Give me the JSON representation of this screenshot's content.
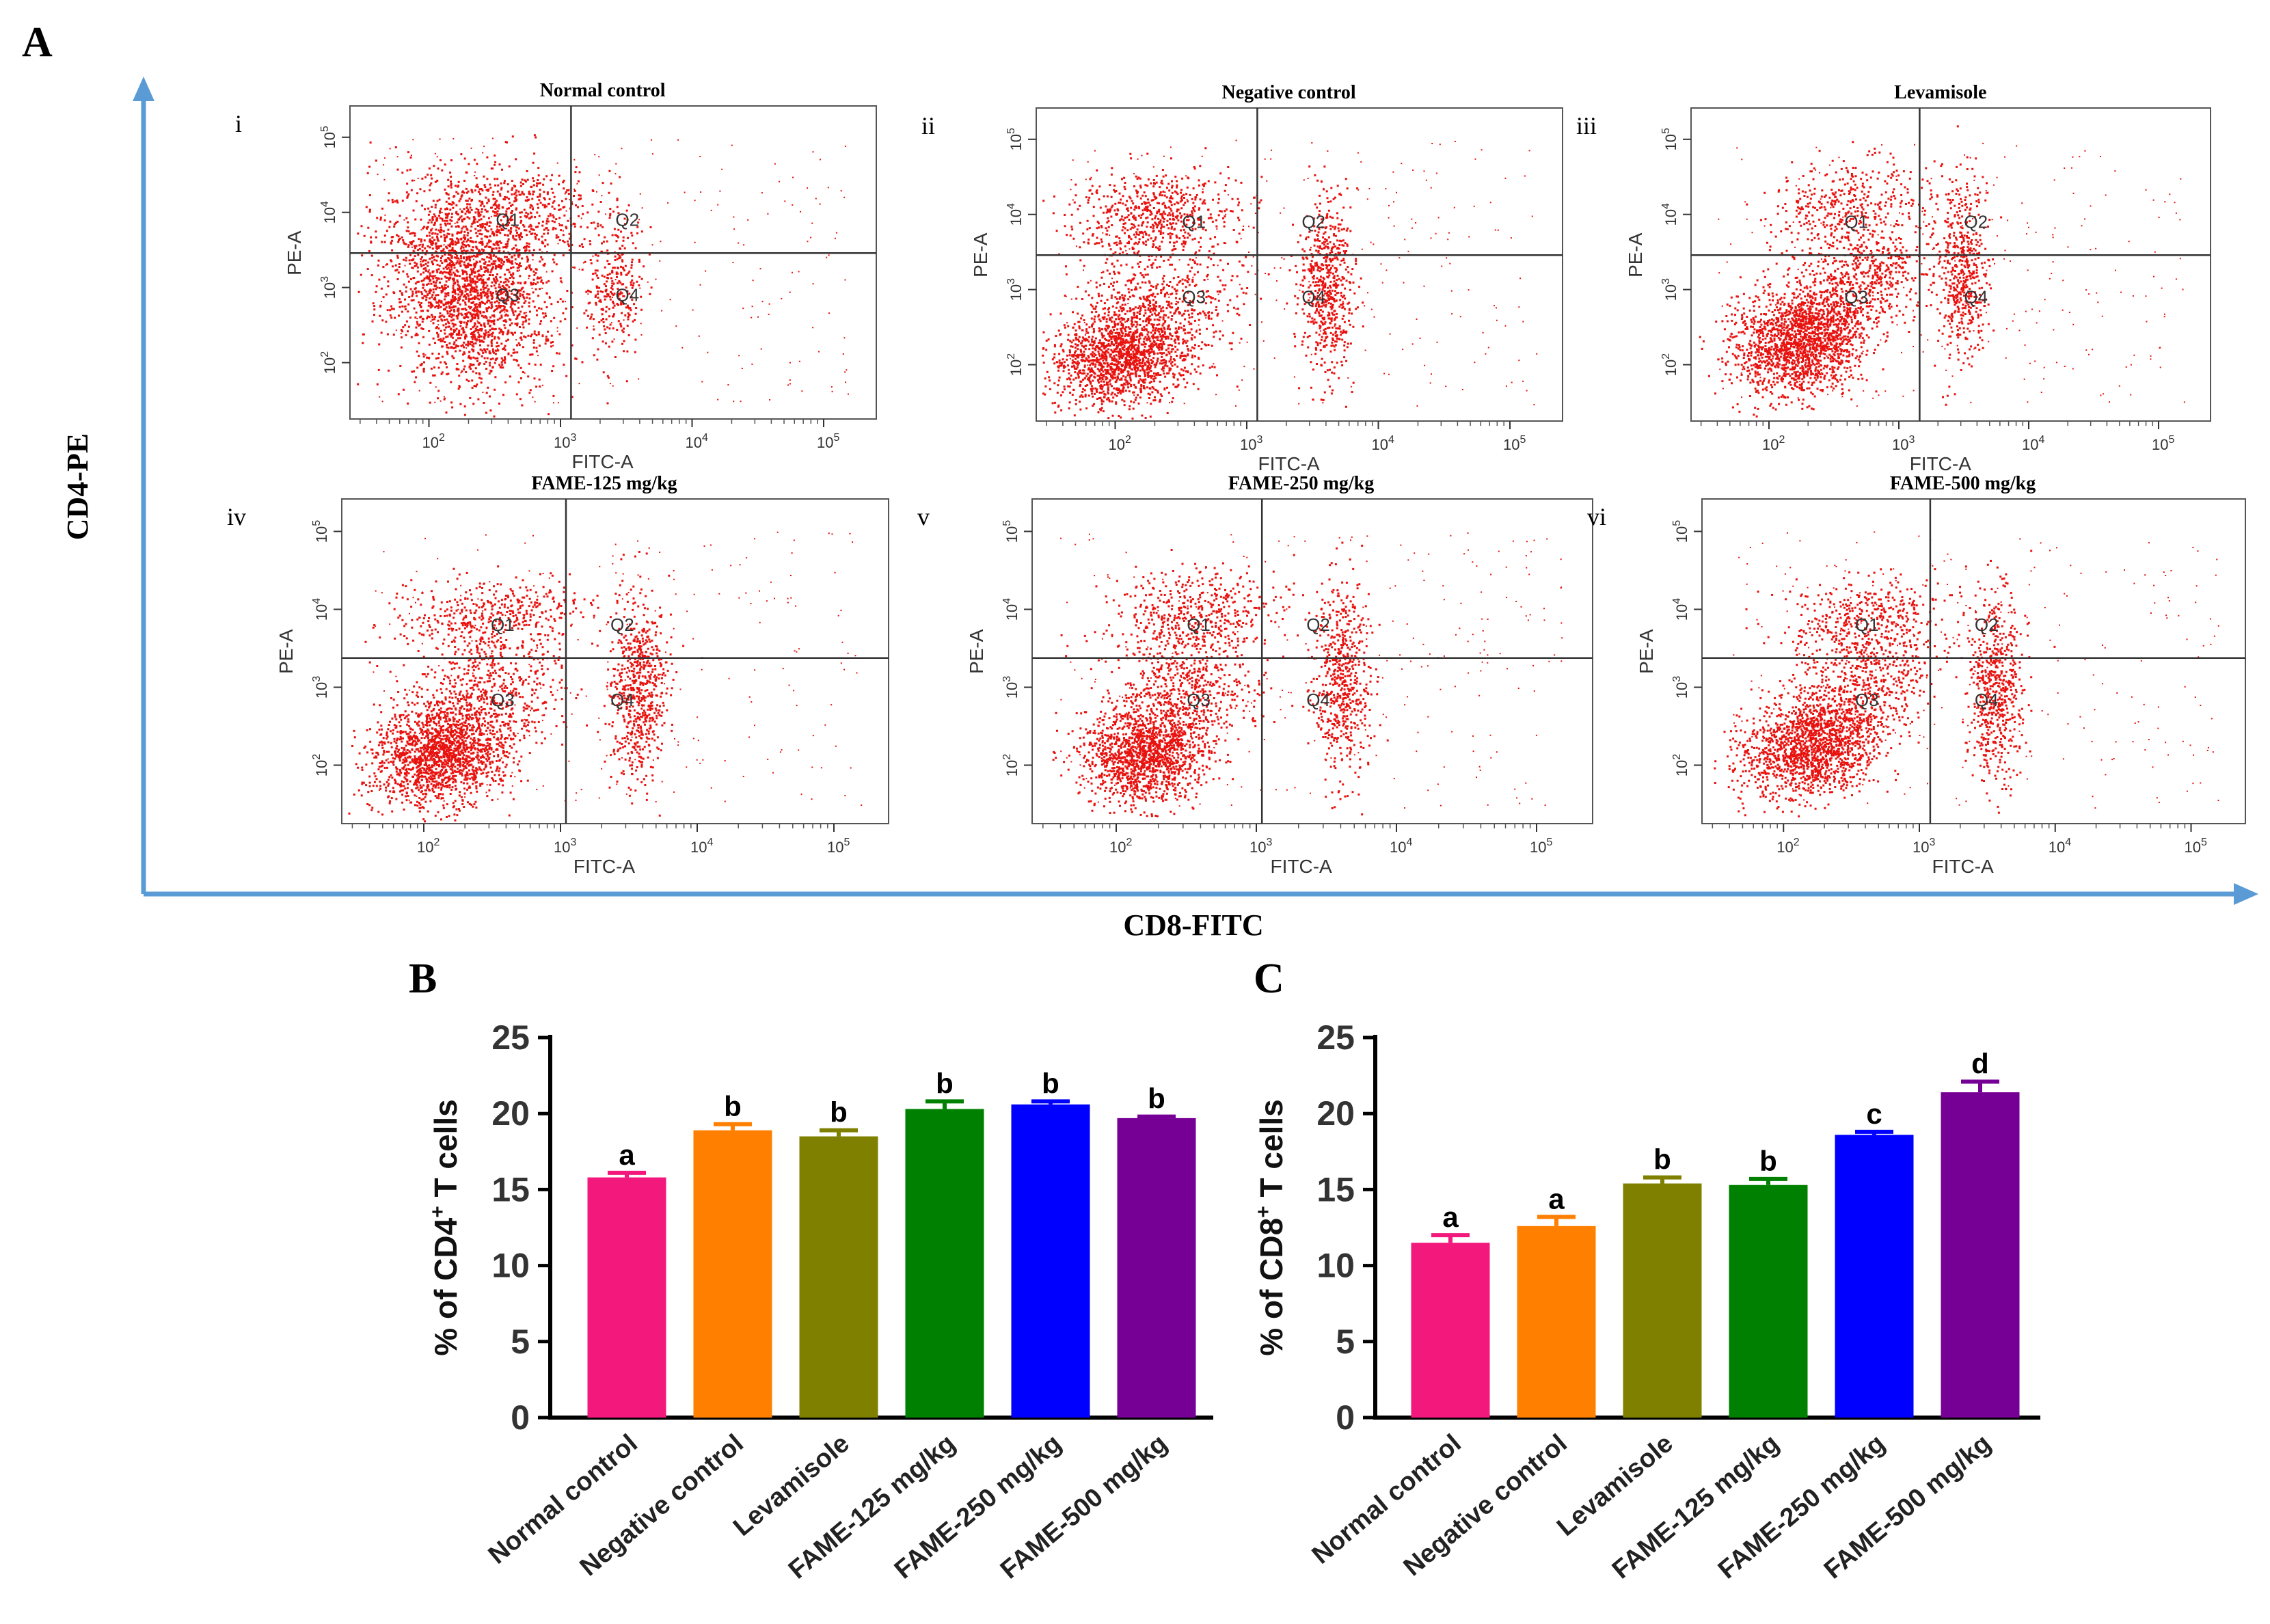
{
  "panel_labels": {
    "A": "A",
    "B": "B",
    "C": "C"
  },
  "panel_a": {
    "y_axis_title": "CD4-PE",
    "x_axis_title": "CD8-FITC",
    "plots": [
      {
        "index": "i",
        "title": "Normal control"
      },
      {
        "index": "ii",
        "title": "Negative control"
      },
      {
        "index": "iii",
        "title": "Levamisole"
      },
      {
        "index": "iv",
        "title": "FAME-125  mg/kg"
      },
      {
        "index": "v",
        "title": "FAME-250  mg/kg"
      },
      {
        "index": "vi",
        "title": "FAME-500  mg/kg"
      }
    ],
    "plot_x_label": "FITC-A",
    "plot_y_label": "PE-A",
    "decade_ticks": [
      "10",
      "10",
      "10",
      "10"
    ],
    "decade_exps": [
      "2",
      "3",
      "4",
      "5"
    ],
    "quadrant_labels": [
      "Q1",
      "Q2",
      "Q3",
      "Q4"
    ],
    "dot_color": "#e8120f"
  },
  "chart_data": [
    {
      "type": "bar",
      "panel": "B",
      "ylabel_pre": "% of CD4",
      "ylabel_sup": "+",
      "ylabel_post": " T cells",
      "ylim": [
        0,
        25
      ],
      "yticks": [
        "0",
        "5",
        "10",
        "15",
        "20",
        "25"
      ],
      "categories": [
        "Normal control",
        "Negative control",
        "Levamisole",
        "FAME-125 mg/kg",
        "FAME-250 mg/kg",
        "FAME-500 mg/kg"
      ],
      "values": [
        15.8,
        18.9,
        18.5,
        20.3,
        20.6,
        19.7
      ],
      "errors": [
        0.3,
        0.4,
        0.4,
        0.5,
        0.2,
        0.1
      ],
      "significance": [
        "a",
        "b",
        "b",
        "b",
        "b",
        "b"
      ],
      "colors": [
        "#f2187c",
        "#ff7f00",
        "#808000",
        "#008000",
        "#0000ff",
        "#760096"
      ]
    },
    {
      "type": "bar",
      "panel": "C",
      "ylabel_pre": "% of CD8",
      "ylabel_sup": "+",
      "ylabel_post": " T cells",
      "ylim": [
        0,
        25
      ],
      "yticks": [
        "0",
        "5",
        "10",
        "15",
        "20",
        "25"
      ],
      "categories": [
        "Normal control",
        "Negative control",
        "Levamisole",
        "FAME-125 mg/kg",
        "FAME-250 mg/kg",
        "FAME-500 mg/kg"
      ],
      "values": [
        11.5,
        12.6,
        15.4,
        15.3,
        18.6,
        21.4
      ],
      "errors": [
        0.5,
        0.6,
        0.4,
        0.4,
        0.2,
        0.7
      ],
      "significance": [
        "a",
        "a",
        "b",
        "b",
        "c",
        "d"
      ],
      "colors": [
        "#f2187c",
        "#ff7f00",
        "#808000",
        "#008000",
        "#0000ff",
        "#760096"
      ]
    }
  ]
}
